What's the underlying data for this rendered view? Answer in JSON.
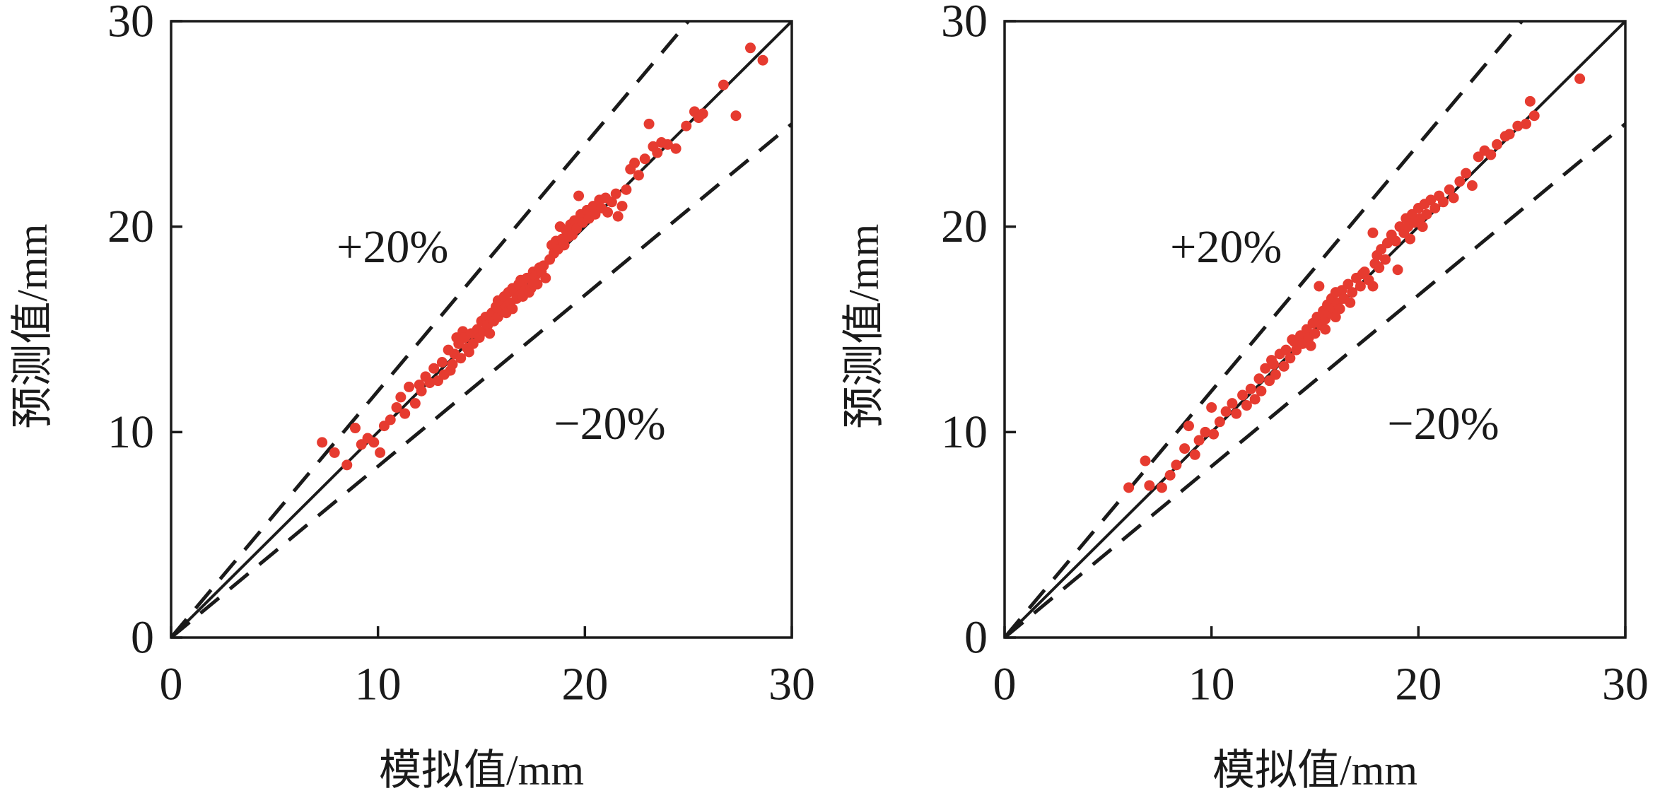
{
  "colors": {
    "points": "#e63b30",
    "lines": "#1a1a1a",
    "axes": "#1a1a1a",
    "background": "#ffffff"
  },
  "chart_data": [
    {
      "type": "scatter",
      "xlabel": "模拟值/mm",
      "ylabel": "预测值/mm",
      "xlim": [
        0,
        30
      ],
      "ylim": [
        0,
        30
      ],
      "xticks": [
        0,
        10,
        20,
        30
      ],
      "yticks": [
        0,
        10,
        20,
        30
      ],
      "grid": false,
      "annotations": [
        "+20%",
        "−20%"
      ],
      "reference_lines": [
        {
          "slope": 1,
          "dashed": false
        },
        {
          "slope": 1.2,
          "dashed": true
        },
        {
          "slope": 0.8333,
          "dashed": true
        }
      ],
      "points": [
        [
          7.3,
          9.5
        ],
        [
          7.9,
          9.0
        ],
        [
          8.5,
          8.4
        ],
        [
          8.9,
          10.2
        ],
        [
          9.2,
          9.4
        ],
        [
          9.5,
          9.7
        ],
        [
          9.8,
          9.5
        ],
        [
          10.1,
          9.0
        ],
        [
          10.3,
          10.3
        ],
        [
          10.6,
          10.6
        ],
        [
          10.9,
          11.2
        ],
        [
          11.1,
          11.7
        ],
        [
          11.3,
          10.9
        ],
        [
          11.5,
          12.2
        ],
        [
          11.8,
          11.4
        ],
        [
          12.0,
          12.3
        ],
        [
          12.1,
          12.0
        ],
        [
          12.3,
          12.7
        ],
        [
          12.5,
          12.4
        ],
        [
          12.7,
          13.1
        ],
        [
          12.9,
          12.5
        ],
        [
          13.1,
          13.4
        ],
        [
          13.2,
          12.8
        ],
        [
          13.4,
          14.0
        ],
        [
          13.5,
          13.0
        ],
        [
          13.6,
          13.3
        ],
        [
          13.7,
          13.8
        ],
        [
          13.8,
          14.6
        ],
        [
          13.9,
          14.3
        ],
        [
          14.0,
          13.6
        ],
        [
          14.1,
          14.9
        ],
        [
          14.2,
          14.6
        ],
        [
          14.3,
          14.1
        ],
        [
          14.4,
          13.9
        ],
        [
          14.5,
          14.8
        ],
        [
          14.6,
          14.3
        ],
        [
          14.8,
          15.0
        ],
        [
          14.9,
          14.6
        ],
        [
          15.0,
          15.4
        ],
        [
          15.1,
          14.9
        ],
        [
          15.2,
          15.6
        ],
        [
          15.3,
          15.2
        ],
        [
          15.4,
          14.8
        ],
        [
          15.5,
          15.8
        ],
        [
          15.6,
          15.4
        ],
        [
          15.7,
          16.1
        ],
        [
          15.8,
          15.6
        ],
        [
          15.8,
          16.4
        ],
        [
          15.9,
          16.3
        ],
        [
          16.0,
          15.9
        ],
        [
          16.0,
          16.4
        ],
        [
          16.1,
          16.6
        ],
        [
          16.2,
          16.1
        ],
        [
          16.2,
          15.8
        ],
        [
          16.3,
          16.8
        ],
        [
          16.4,
          16.3
        ],
        [
          16.5,
          16.0
        ],
        [
          16.5,
          17.0
        ],
        [
          16.6,
          16.9
        ],
        [
          16.7,
          16.5
        ],
        [
          16.8,
          17.2
        ],
        [
          16.9,
          16.7
        ],
        [
          16.9,
          17.4
        ],
        [
          17.0,
          17.3
        ],
        [
          17.0,
          16.6
        ],
        [
          17.1,
          16.9
        ],
        [
          17.2,
          17.5
        ],
        [
          17.3,
          16.8
        ],
        [
          17.4,
          17.0
        ],
        [
          17.5,
          17.8
        ],
        [
          17.5,
          17.2
        ],
        [
          17.6,
          17.6
        ],
        [
          17.7,
          17.2
        ],
        [
          17.8,
          18.0
        ],
        [
          17.9,
          17.8
        ],
        [
          18.0,
          18.1
        ],
        [
          18.1,
          17.5
        ],
        [
          18.3,
          18.4
        ],
        [
          18.4,
          19.1
        ],
        [
          18.5,
          18.7
        ],
        [
          18.6,
          19.3
        ],
        [
          18.7,
          18.9
        ],
        [
          18.8,
          20.0
        ],
        [
          18.9,
          19.4
        ],
        [
          19.0,
          19.1
        ],
        [
          19.1,
          19.8
        ],
        [
          19.2,
          19.5
        ],
        [
          19.3,
          20.1
        ],
        [
          19.4,
          19.6
        ],
        [
          19.5,
          20.3
        ],
        [
          19.6,
          19.9
        ],
        [
          19.7,
          21.5
        ],
        [
          19.8,
          20.6
        ],
        [
          19.9,
          20.2
        ],
        [
          20.1,
          20.8
        ],
        [
          20.2,
          20.4
        ],
        [
          20.4,
          21.0
        ],
        [
          20.5,
          20.6
        ],
        [
          20.7,
          21.3
        ],
        [
          20.8,
          20.9
        ],
        [
          21.0,
          21.4
        ],
        [
          21.1,
          20.7
        ],
        [
          21.3,
          21.2
        ],
        [
          21.5,
          21.6
        ],
        [
          21.6,
          20.5
        ],
        [
          21.8,
          21.0
        ],
        [
          22.0,
          21.8
        ],
        [
          22.2,
          22.8
        ],
        [
          22.4,
          23.1
        ],
        [
          22.6,
          22.5
        ],
        [
          22.9,
          23.3
        ],
        [
          23.1,
          25.0
        ],
        [
          23.3,
          23.9
        ],
        [
          23.5,
          23.6
        ],
        [
          23.7,
          24.1
        ],
        [
          24.0,
          24.0
        ],
        [
          24.4,
          23.8
        ],
        [
          24.9,
          24.9
        ],
        [
          25.3,
          25.6
        ],
        [
          25.5,
          25.3
        ],
        [
          25.7,
          25.5
        ],
        [
          26.7,
          26.9
        ],
        [
          27.3,
          25.4
        ],
        [
          28.0,
          28.7
        ],
        [
          28.6,
          28.1
        ]
      ]
    },
    {
      "type": "scatter",
      "xlabel": "模拟值/mm",
      "ylabel": "预测值/mm",
      "xlim": [
        0,
        30
      ],
      "ylim": [
        0,
        30
      ],
      "xticks": [
        0,
        10,
        20,
        30
      ],
      "yticks": [
        0,
        10,
        20,
        30
      ],
      "grid": false,
      "annotations": [
        "+20%",
        "−20%"
      ],
      "reference_lines": [
        {
          "slope": 1,
          "dashed": false
        },
        {
          "slope": 1.2,
          "dashed": true
        },
        {
          "slope": 0.8333,
          "dashed": true
        }
      ],
      "points": [
        [
          6.0,
          7.3
        ],
        [
          6.8,
          8.6
        ],
        [
          7.0,
          7.4
        ],
        [
          7.6,
          7.3
        ],
        [
          8.0,
          7.9
        ],
        [
          8.3,
          8.4
        ],
        [
          8.7,
          9.2
        ],
        [
          8.9,
          10.3
        ],
        [
          9.2,
          8.9
        ],
        [
          9.4,
          9.6
        ],
        [
          9.7,
          10.0
        ],
        [
          10.0,
          11.2
        ],
        [
          10.1,
          9.9
        ],
        [
          10.4,
          10.5
        ],
        [
          10.7,
          11.0
        ],
        [
          11.0,
          11.4
        ],
        [
          11.2,
          10.9
        ],
        [
          11.5,
          11.8
        ],
        [
          11.7,
          11.3
        ],
        [
          11.9,
          12.1
        ],
        [
          12.1,
          11.6
        ],
        [
          12.3,
          12.6
        ],
        [
          12.4,
          12.0
        ],
        [
          12.6,
          13.1
        ],
        [
          12.8,
          12.5
        ],
        [
          12.9,
          13.5
        ],
        [
          13.0,
          13.3
        ],
        [
          13.1,
          12.8
        ],
        [
          13.3,
          13.8
        ],
        [
          13.5,
          13.2
        ],
        [
          13.6,
          14.0
        ],
        [
          13.8,
          13.6
        ],
        [
          13.9,
          14.5
        ],
        [
          14.0,
          14.4
        ],
        [
          14.1,
          14.0
        ],
        [
          14.3,
          14.7
        ],
        [
          14.4,
          14.3
        ],
        [
          14.6,
          15.0
        ],
        [
          14.7,
          14.6
        ],
        [
          14.8,
          14.2
        ],
        [
          14.9,
          15.3
        ],
        [
          15.0,
          14.8
        ],
        [
          15.1,
          15.6
        ],
        [
          15.2,
          17.1
        ],
        [
          15.3,
          15.2
        ],
        [
          15.4,
          15.9
        ],
        [
          15.5,
          15.5
        ],
        [
          15.5,
          15.0
        ],
        [
          15.6,
          16.2
        ],
        [
          15.7,
          15.8
        ],
        [
          15.8,
          16.5
        ],
        [
          15.9,
          16.0
        ],
        [
          16.0,
          16.8
        ],
        [
          16.0,
          15.6
        ],
        [
          16.1,
          16.3
        ],
        [
          16.2,
          16.0
        ],
        [
          16.3,
          16.9
        ],
        [
          16.4,
          16.5
        ],
        [
          16.6,
          17.2
        ],
        [
          16.7,
          16.3
        ],
        [
          16.8,
          16.8
        ],
        [
          17.0,
          17.5
        ],
        [
          17.2,
          17.1
        ],
        [
          17.3,
          17.7
        ],
        [
          17.4,
          17.8
        ],
        [
          17.6,
          17.4
        ],
        [
          17.8,
          17.1
        ],
        [
          17.8,
          19.7
        ],
        [
          17.9,
          18.2
        ],
        [
          18.0,
          18.6
        ],
        [
          18.1,
          18.0
        ],
        [
          18.2,
          18.9
        ],
        [
          18.4,
          18.4
        ],
        [
          18.5,
          19.2
        ],
        [
          18.7,
          19.6
        ],
        [
          18.9,
          19.3
        ],
        [
          19.0,
          17.9
        ],
        [
          19.1,
          20.0
        ],
        [
          19.3,
          19.7
        ],
        [
          19.4,
          20.4
        ],
        [
          19.5,
          20.0
        ],
        [
          19.6,
          19.4
        ],
        [
          19.7,
          20.6
        ],
        [
          19.8,
          20.2
        ],
        [
          20.0,
          20.9
        ],
        [
          20.1,
          20.4
        ],
        [
          20.2,
          20.0
        ],
        [
          20.3,
          21.1
        ],
        [
          20.4,
          20.6
        ],
        [
          20.6,
          21.3
        ],
        [
          20.8,
          20.9
        ],
        [
          21.0,
          21.5
        ],
        [
          21.2,
          21.2
        ],
        [
          21.5,
          21.8
        ],
        [
          21.7,
          21.4
        ],
        [
          22.0,
          22.2
        ],
        [
          22.3,
          22.6
        ],
        [
          22.6,
          22.0
        ],
        [
          22.9,
          23.4
        ],
        [
          23.2,
          23.7
        ],
        [
          23.5,
          23.5
        ],
        [
          23.8,
          24.0
        ],
        [
          24.2,
          24.4
        ],
        [
          24.4,
          24.5
        ],
        [
          24.8,
          24.9
        ],
        [
          25.2,
          25.0
        ],
        [
          25.4,
          26.1
        ],
        [
          25.6,
          25.4
        ],
        [
          27.8,
          27.2
        ]
      ]
    }
  ]
}
